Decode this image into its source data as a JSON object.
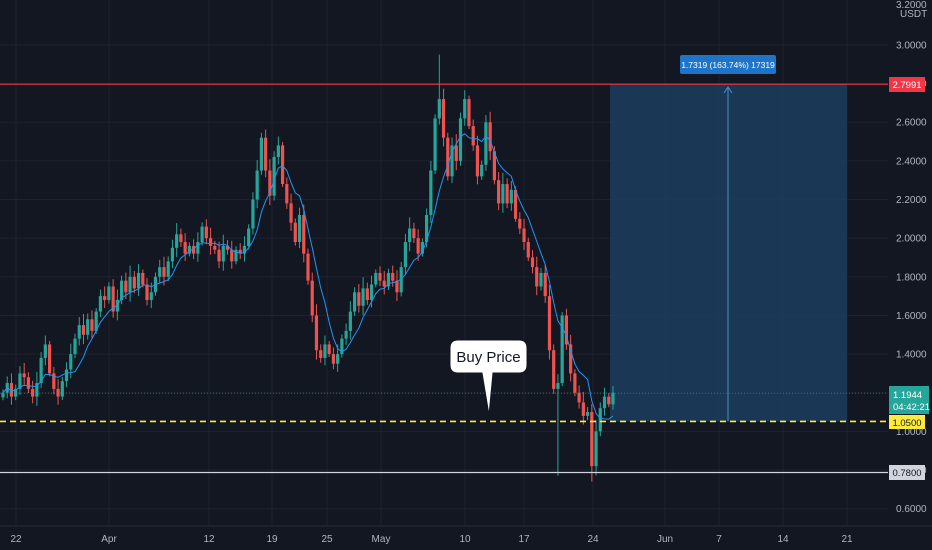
{
  "price_scale": {
    "unit": "USDT",
    "top_partial_label": "3.2000",
    "tick_labels": [
      "3.0000",
      "2.8000",
      "2.6000",
      "2.4000",
      "2.2000",
      "2.0000",
      "1.8000",
      "1.6000",
      "1.4000",
      "1.2000",
      "1.0000",
      "0.8000",
      "0.6000"
    ]
  },
  "time_scale": {
    "tick_labels": [
      "22",
      "Apr",
      "12",
      "19",
      "25",
      "May",
      "10",
      "17",
      "24",
      "Jun",
      "7",
      "14",
      "21"
    ]
  },
  "annotations": {
    "buy_price_label": "Buy Price",
    "measure_label": "1.7319 (163.74%) 17319"
  },
  "price_tags": {
    "resistance": "2.7991",
    "current_price": "1.1944",
    "countdown": "04:42:21",
    "buy_price": "1.0500",
    "support": "0.7800"
  },
  "colors": {
    "background": "#131722",
    "grid": "#1e222d",
    "up_candle": "#26a69a",
    "down_candle": "#ef5350",
    "moving_average": "#2196f3",
    "resistance_line": "#f23645",
    "buy_line": "#ffeb3b",
    "support_line": "#d1d4dc",
    "measure_box": "#1c3d5e",
    "measure_label_bg": "#1e74c9",
    "current_tag_bg": "#26a69a"
  },
  "chart_data": {
    "type": "candlestick",
    "ylim": [
      0.55,
      3.25
    ],
    "log_scale": false,
    "grid": true,
    "levels": {
      "resistance": 2.7991,
      "buy_price": 1.05,
      "support": 0.78,
      "current": 1.1944
    },
    "close_series": [
      1.2,
      1.25,
      1.18,
      1.22,
      1.3,
      1.28,
      1.22,
      1.18,
      1.25,
      1.38,
      1.45,
      1.3,
      1.22,
      1.18,
      1.26,
      1.32,
      1.4,
      1.48,
      1.55,
      1.5,
      1.58,
      1.52,
      1.62,
      1.7,
      1.68,
      1.75,
      1.62,
      1.68,
      1.78,
      1.72,
      1.8,
      1.74,
      1.82,
      1.76,
      1.68,
      1.72,
      1.8,
      1.85,
      1.8,
      1.88,
      1.95,
      2.02,
      1.98,
      1.92,
      1.96,
      1.92,
      1.98,
      2.06,
      2.0,
      1.96,
      1.94,
      1.88,
      1.96,
      1.94,
      1.88,
      1.94,
      1.92,
      1.96,
      2.05,
      2.2,
      2.35,
      2.52,
      2.35,
      2.22,
      2.42,
      2.48,
      2.28,
      2.18,
      2.08,
      1.98,
      2.12,
      1.92,
      1.78,
      1.6,
      1.42,
      1.38,
      1.45,
      1.4,
      1.35,
      1.4,
      1.48,
      1.52,
      1.62,
      1.72,
      1.65,
      1.74,
      1.68,
      1.76,
      1.82,
      1.78,
      1.75,
      1.82,
      1.78,
      1.72,
      1.85,
      1.98,
      2.05,
      2.0,
      1.92,
      1.98,
      2.12,
      2.35,
      2.62,
      2.72,
      2.52,
      2.32,
      2.48,
      2.4,
      2.62,
      2.72,
      2.58,
      2.48,
      2.32,
      2.38,
      2.6,
      2.45,
      2.3,
      2.18,
      2.28,
      2.18,
      2.25,
      2.1,
      2.05,
      1.98,
      1.9,
      1.85,
      1.75,
      1.82,
      1.7,
      1.42,
      1.22,
      1.25,
      1.6,
      1.45,
      1.3,
      1.2,
      1.15,
      1.08,
      1.1,
      0.82,
      1.0,
      1.12,
      1.18,
      1.14,
      1.2
    ]
  }
}
